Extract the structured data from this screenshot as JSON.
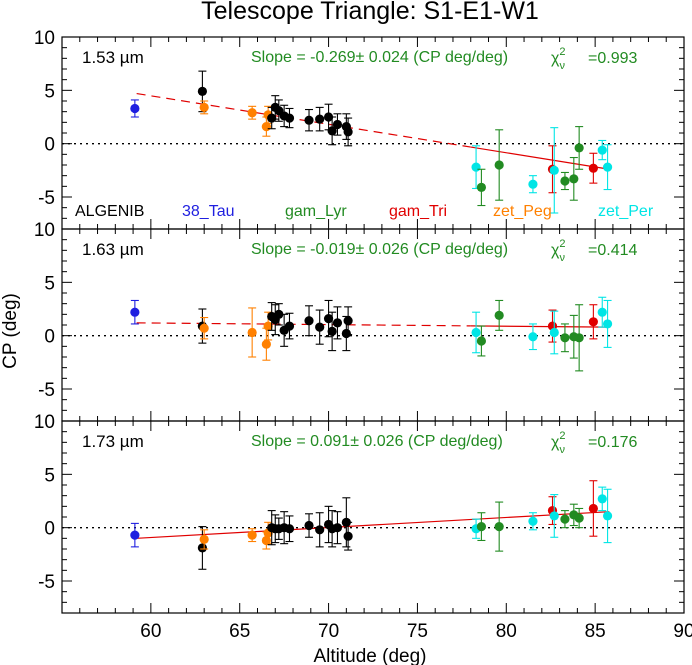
{
  "chart_data": {
    "type": "scatter",
    "title": "Telescope Triangle: S1-E1-W1",
    "xlabel": "Altitude (deg)",
    "ylabel": "CP (deg)",
    "xlim": [
      55,
      90
    ],
    "ylim": [
      -8,
      10
    ],
    "x_ticks": [
      60,
      65,
      70,
      75,
      80,
      85,
      90
    ],
    "y_ticks": [
      -5,
      0,
      5,
      10
    ],
    "stars": [
      {
        "name": "ALGENIB",
        "color": "#000000"
      },
      {
        "name": "38_Tau",
        "color": "#1f1fe0"
      },
      {
        "name": "gam_Lyr",
        "color": "#228b22"
      },
      {
        "name": "gam_Tri",
        "color": "#e00000"
      },
      {
        "name": "zet_Peg",
        "color": "#ff8000"
      },
      {
        "name": "zet_Per",
        "color": "#00e5e5"
      }
    ],
    "panels": [
      {
        "band": "1.53 µm",
        "slope_text": "Slope = -0.269± 0.024 (CP deg/deg)",
        "chi_label": "χ",
        "chi_sub": "ν",
        "chi_sup": "2",
        "chi_value": "=0.993",
        "fit": {
          "x0": 59.2,
          "x1": 85.8,
          "y0": 4.7,
          "y1": -2.4,
          "solid_from_x": 78.0
        },
        "points": [
          {
            "x": 59.1,
            "y": 3.3,
            "err": 0.8,
            "star": "38_Tau"
          },
          {
            "x": 62.9,
            "y": 4.9,
            "err": 1.9,
            "star": "ALGENIB"
          },
          {
            "x": 63.0,
            "y": 3.4,
            "err": 0.6,
            "star": "zet_Peg"
          },
          {
            "x": 65.7,
            "y": 2.9,
            "err": 0.6,
            "star": "zet_Peg"
          },
          {
            "x": 66.5,
            "y": 1.6,
            "err": 0.9,
            "star": "zet_Peg"
          },
          {
            "x": 66.6,
            "y": 2.7,
            "err": 0.8,
            "star": "zet_Peg"
          },
          {
            "x": 66.8,
            "y": 2.4,
            "err": 1.0,
            "star": "ALGENIB"
          },
          {
            "x": 67.0,
            "y": 3.4,
            "err": 1.1,
            "star": "ALGENIB"
          },
          {
            "x": 67.2,
            "y": 3.1,
            "err": 1.0,
            "star": "ALGENIB"
          },
          {
            "x": 67.5,
            "y": 2.6,
            "err": 1.0,
            "star": "ALGENIB"
          },
          {
            "x": 67.8,
            "y": 2.4,
            "err": 0.9,
            "star": "ALGENIB"
          },
          {
            "x": 68.9,
            "y": 2.2,
            "err": 1.0,
            "star": "ALGENIB"
          },
          {
            "x": 69.5,
            "y": 2.3,
            "err": 1.1,
            "star": "ALGENIB"
          },
          {
            "x": 70.0,
            "y": 2.5,
            "err": 1.2,
            "star": "ALGENIB"
          },
          {
            "x": 70.2,
            "y": 1.2,
            "err": 1.3,
            "star": "ALGENIB"
          },
          {
            "x": 70.5,
            "y": 1.8,
            "err": 1.0,
            "star": "ALGENIB"
          },
          {
            "x": 71.0,
            "y": 1.6,
            "err": 1.2,
            "star": "ALGENIB"
          },
          {
            "x": 71.1,
            "y": 1.1,
            "err": 1.3,
            "star": "ALGENIB"
          },
          {
            "x": 78.3,
            "y": -2.2,
            "err": 2.0,
            "star": "zet_Per"
          },
          {
            "x": 78.6,
            "y": -4.1,
            "err": 1.7,
            "star": "gam_Lyr"
          },
          {
            "x": 79.6,
            "y": -2.0,
            "err": 3.3,
            "star": "gam_Lyr"
          },
          {
            "x": 81.5,
            "y": -3.8,
            "err": 0.8,
            "star": "zet_Per"
          },
          {
            "x": 82.6,
            "y": -2.4,
            "err": 2.2,
            "star": "gam_Tri"
          },
          {
            "x": 82.7,
            "y": -2.5,
            "err": 4.0,
            "star": "zet_Per"
          },
          {
            "x": 83.3,
            "y": -3.5,
            "err": 0.8,
            "star": "gam_Lyr"
          },
          {
            "x": 83.8,
            "y": -3.3,
            "err": 2.0,
            "star": "gam_Lyr"
          },
          {
            "x": 84.1,
            "y": -0.4,
            "err": 2.0,
            "star": "gam_Lyr"
          },
          {
            "x": 84.9,
            "y": -2.3,
            "err": 1.4,
            "star": "gam_Tri"
          },
          {
            "x": 85.4,
            "y": -0.6,
            "err": 0.9,
            "star": "zet_Per"
          },
          {
            "x": 85.7,
            "y": -2.2,
            "err": 2.1,
            "star": "zet_Per"
          }
        ]
      },
      {
        "band": "1.63 µm",
        "slope_text": "Slope = -0.019± 0.026 (CP deg/deg)",
        "chi_label": "χ",
        "chi_sub": "ν",
        "chi_sup": "2",
        "chi_value": "=0.414",
        "fit": {
          "x0": 59.2,
          "x1": 85.8,
          "y0": 1.2,
          "y1": 0.8,
          "solid_from_x": 78.0
        },
        "points": [
          {
            "x": 59.1,
            "y": 2.2,
            "err": 1.1,
            "star": "38_Tau"
          },
          {
            "x": 62.9,
            "y": 0.9,
            "err": 1.6,
            "star": "ALGENIB"
          },
          {
            "x": 63.0,
            "y": 0.7,
            "err": 1.0,
            "star": "zet_Peg"
          },
          {
            "x": 65.7,
            "y": 0.3,
            "err": 2.3,
            "star": "zet_Peg"
          },
          {
            "x": 66.5,
            "y": -0.8,
            "err": 1.5,
            "star": "zet_Peg"
          },
          {
            "x": 66.6,
            "y": 0.9,
            "err": 1.3,
            "star": "zet_Peg"
          },
          {
            "x": 66.8,
            "y": 1.8,
            "err": 1.3,
            "star": "ALGENIB"
          },
          {
            "x": 67.0,
            "y": 1.5,
            "err": 1.4,
            "star": "ALGENIB"
          },
          {
            "x": 67.2,
            "y": 2.0,
            "err": 1.0,
            "star": "ALGENIB"
          },
          {
            "x": 67.5,
            "y": 0.5,
            "err": 1.5,
            "star": "ALGENIB"
          },
          {
            "x": 67.8,
            "y": 0.9,
            "err": 1.2,
            "star": "ALGENIB"
          },
          {
            "x": 68.9,
            "y": 1.4,
            "err": 1.4,
            "star": "ALGENIB"
          },
          {
            "x": 69.5,
            "y": 0.8,
            "err": 1.6,
            "star": "ALGENIB"
          },
          {
            "x": 70.0,
            "y": 1.6,
            "err": 1.7,
            "star": "ALGENIB"
          },
          {
            "x": 70.2,
            "y": 0.4,
            "err": 1.8,
            "star": "ALGENIB"
          },
          {
            "x": 70.5,
            "y": 1.2,
            "err": 1.5,
            "star": "ALGENIB"
          },
          {
            "x": 71.0,
            "y": 0.2,
            "err": 1.6,
            "star": "ALGENIB"
          },
          {
            "x": 71.1,
            "y": 1.4,
            "err": 1.3,
            "star": "ALGENIB"
          },
          {
            "x": 78.3,
            "y": 0.3,
            "err": 1.9,
            "star": "zet_Per"
          },
          {
            "x": 78.6,
            "y": -0.5,
            "err": 1.4,
            "star": "gam_Lyr"
          },
          {
            "x": 79.6,
            "y": 1.9,
            "err": 1.4,
            "star": "gam_Lyr"
          },
          {
            "x": 81.5,
            "y": -0.1,
            "err": 1.2,
            "star": "zet_Per"
          },
          {
            "x": 82.6,
            "y": 0.9,
            "err": 1.5,
            "star": "gam_Tri"
          },
          {
            "x": 82.7,
            "y": 0.3,
            "err": 2.0,
            "star": "zet_Per"
          },
          {
            "x": 83.3,
            "y": -0.2,
            "err": 1.3,
            "star": "gam_Lyr"
          },
          {
            "x": 83.8,
            "y": -0.1,
            "err": 2.0,
            "star": "gam_Lyr"
          },
          {
            "x": 84.1,
            "y": -0.2,
            "err": 3.1,
            "star": "gam_Lyr"
          },
          {
            "x": 84.9,
            "y": 1.3,
            "err": 1.6,
            "star": "gam_Tri"
          },
          {
            "x": 85.4,
            "y": 2.2,
            "err": 1.4,
            "star": "zet_Per"
          },
          {
            "x": 85.7,
            "y": 1.1,
            "err": 2.2,
            "star": "zet_Per"
          }
        ]
      },
      {
        "band": "1.73 µm",
        "slope_text": "Slope =  0.091± 0.026 (CP deg/deg)",
        "chi_label": "χ",
        "chi_sub": "ν",
        "chi_sup": "2",
        "chi_value": "=0.176",
        "fit": {
          "x0": 59.2,
          "x1": 85.8,
          "y0": -1.0,
          "y1": 1.5,
          "solid_from_x": 59.2
        },
        "points": [
          {
            "x": 59.1,
            "y": -0.7,
            "err": 1.1,
            "star": "38_Tau"
          },
          {
            "x": 62.9,
            "y": -1.9,
            "err": 2.0,
            "star": "ALGENIB"
          },
          {
            "x": 63.0,
            "y": -1.1,
            "err": 0.9,
            "star": "zet_Peg"
          },
          {
            "x": 65.7,
            "y": -0.7,
            "err": 0.6,
            "star": "zet_Peg"
          },
          {
            "x": 66.5,
            "y": -1.2,
            "err": 0.8,
            "star": "zet_Peg"
          },
          {
            "x": 66.6,
            "y": -0.5,
            "err": 1.0,
            "star": "zet_Peg"
          },
          {
            "x": 66.8,
            "y": 0.0,
            "err": 1.6,
            "star": "ALGENIB"
          },
          {
            "x": 67.0,
            "y": -0.1,
            "err": 1.3,
            "star": "ALGENIB"
          },
          {
            "x": 67.2,
            "y": -0.1,
            "err": 1.0,
            "star": "ALGENIB"
          },
          {
            "x": 67.5,
            "y": 0.0,
            "err": 1.5,
            "star": "ALGENIB"
          },
          {
            "x": 67.8,
            "y": -0.1,
            "err": 1.2,
            "star": "ALGENIB"
          },
          {
            "x": 68.9,
            "y": 0.2,
            "err": 1.1,
            "star": "ALGENIB"
          },
          {
            "x": 69.5,
            "y": -0.2,
            "err": 1.6,
            "star": "ALGENIB"
          },
          {
            "x": 70.0,
            "y": 0.3,
            "err": 1.7,
            "star": "ALGENIB"
          },
          {
            "x": 70.2,
            "y": -0.1,
            "err": 1.7,
            "star": "ALGENIB"
          },
          {
            "x": 70.5,
            "y": 0.0,
            "err": 1.5,
            "star": "ALGENIB"
          },
          {
            "x": 71.0,
            "y": 0.5,
            "err": 2.3,
            "star": "ALGENIB"
          },
          {
            "x": 71.1,
            "y": -0.8,
            "err": 1.3,
            "star": "ALGENIB"
          },
          {
            "x": 78.3,
            "y": -0.1,
            "err": 0.9,
            "star": "zet_Per"
          },
          {
            "x": 78.6,
            "y": 0.1,
            "err": 1.3,
            "star": "gam_Lyr"
          },
          {
            "x": 79.6,
            "y": 0.1,
            "err": 2.3,
            "star": "gam_Lyr"
          },
          {
            "x": 81.5,
            "y": 0.6,
            "err": 0.8,
            "star": "zet_Per"
          },
          {
            "x": 82.6,
            "y": 1.6,
            "err": 1.3,
            "star": "gam_Tri"
          },
          {
            "x": 82.7,
            "y": 1.1,
            "err": 2.0,
            "star": "zet_Per"
          },
          {
            "x": 83.3,
            "y": 0.8,
            "err": 0.8,
            "star": "gam_Lyr"
          },
          {
            "x": 83.8,
            "y": 1.2,
            "err": 1.0,
            "star": "gam_Lyr"
          },
          {
            "x": 84.1,
            "y": 0.9,
            "err": 0.9,
            "star": "gam_Lyr"
          },
          {
            "x": 84.9,
            "y": 1.8,
            "err": 2.6,
            "star": "gam_Tri"
          },
          {
            "x": 85.4,
            "y": 2.7,
            "err": 1.1,
            "star": "zet_Per"
          },
          {
            "x": 85.7,
            "y": 1.1,
            "err": 2.5,
            "star": "zet_Per"
          }
        ]
      }
    ]
  }
}
